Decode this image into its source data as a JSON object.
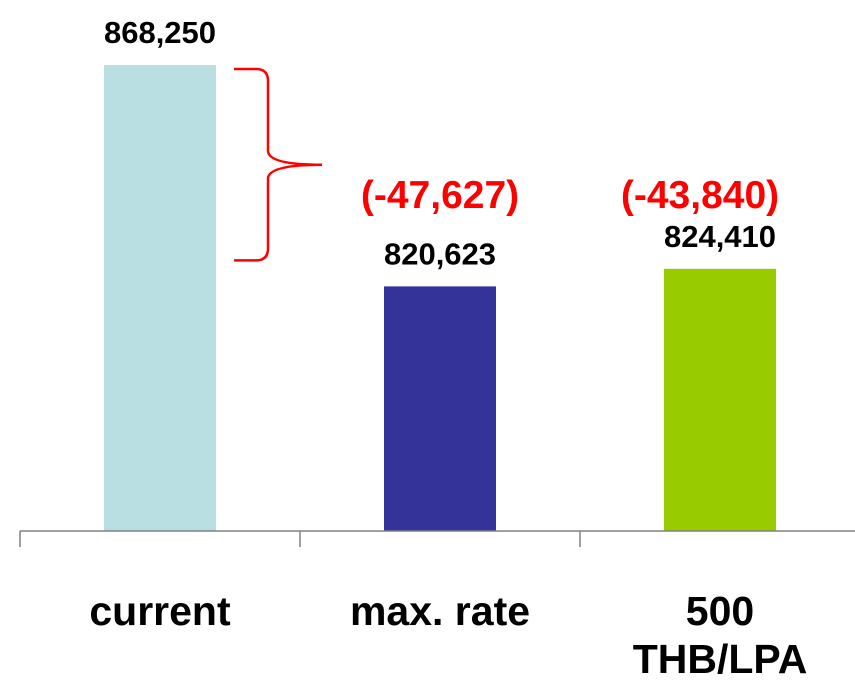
{
  "chart_data": {
    "type": "bar",
    "categories": [
      "current",
      "max. rate",
      "500 THB/LPA"
    ],
    "category_lines": [
      [
        "current"
      ],
      [
        "max. rate"
      ],
      [
        "500",
        "THB/LPA"
      ]
    ],
    "values": [
      868250,
      820623,
      824410
    ],
    "value_labels": [
      "868,250",
      "820,623",
      "824,410"
    ],
    "bar_colors": [
      "#b9dfe3",
      "#333399",
      "#99cc00"
    ],
    "annotations": [
      {
        "text": "(-47,627)",
        "color": "#ff0000"
      },
      {
        "text": "(-43,840)",
        "color": "#ff0000"
      }
    ],
    "title": "",
    "xlabel": "",
    "ylabel": "",
    "ylim": [
      768000,
      868250
    ],
    "grid": false,
    "legend": "none"
  }
}
